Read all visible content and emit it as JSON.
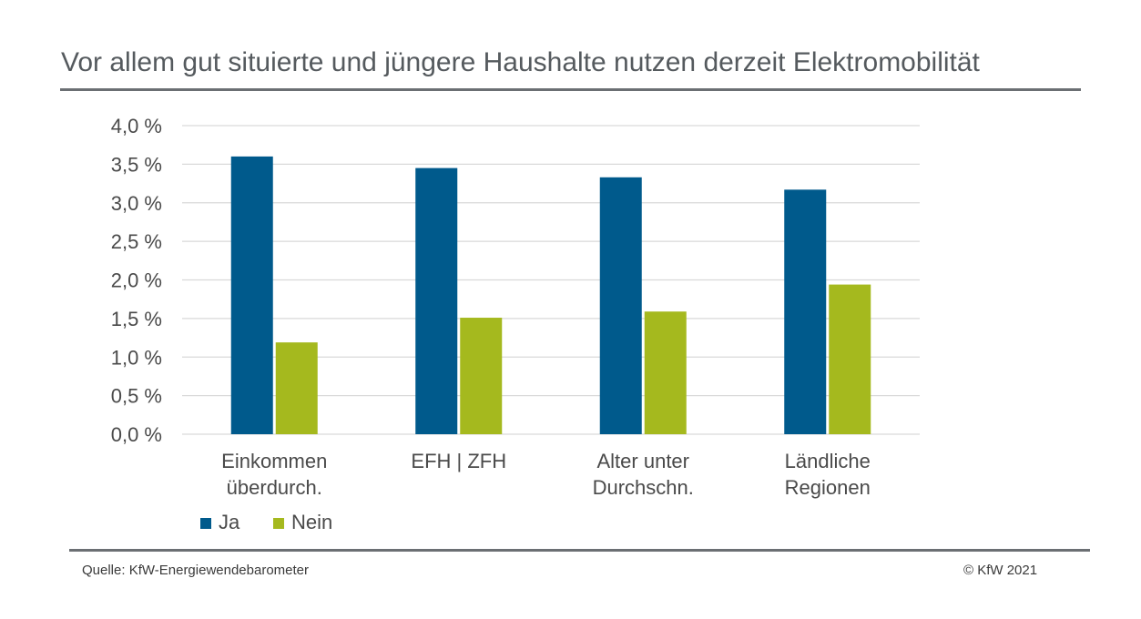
{
  "title": "Vor allem gut situierte und jüngere Haushalte nutzen derzeit Elektromobilität",
  "footer": {
    "source": "Quelle: KfW-Energiewendebarometer",
    "copyright": "© KfW 2021"
  },
  "colors": {
    "ja": "#005a8c",
    "nein": "#a5b91e",
    "grid": "#d9d9d9",
    "rule": "#6b6f73"
  },
  "chart_data": {
    "type": "bar",
    "title": "Vor allem gut situierte und jüngere Haushalte nutzen derzeit Elektromobilität",
    "categories": [
      [
        "Einkommen",
        "überdurch."
      ],
      [
        "EFH | ZFH"
      ],
      [
        "Alter unter",
        "Durchschn."
      ],
      [
        "Ländliche",
        "Regionen"
      ]
    ],
    "series": [
      {
        "name": "Ja",
        "values": [
          3.6,
          3.45,
          3.33,
          3.17
        ]
      },
      {
        "name": "Nein",
        "values": [
          1.19,
          1.51,
          1.59,
          1.94
        ]
      }
    ],
    "ylim": [
      0,
      4
    ],
    "yticks": [
      "0,0 %",
      "0,5 %",
      "1,0 %",
      "1,5 %",
      "2,0 %",
      "2,5 %",
      "3,0 %",
      "3,5 %",
      "4,0 %"
    ],
    "grid": true,
    "legend": "bottom-left"
  }
}
